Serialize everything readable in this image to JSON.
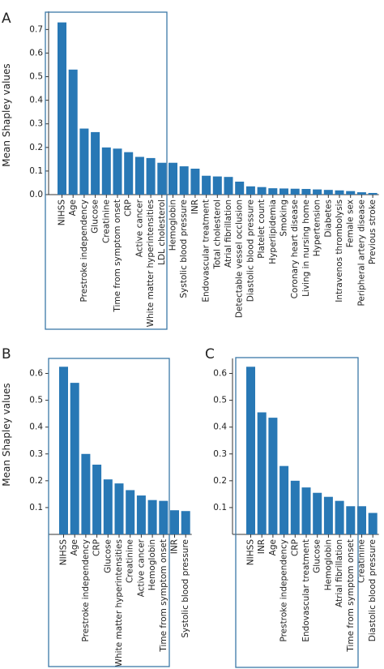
{
  "colors": {
    "bar": "#2878b5",
    "box": "#3b78a8",
    "axis": "#333333"
  },
  "chart_data": [
    {
      "panel": "A",
      "type": "bar",
      "ylabel": "Mean Shapley values",
      "ylim": [
        0,
        0.77
      ],
      "yticks": [
        "0.0",
        "0.1",
        "0.2",
        "0.3",
        "0.4",
        "0.5",
        "0.6",
        "0.7"
      ],
      "categories": [
        "NIHSS",
        "Age",
        "Prestroke independency",
        "Glucose",
        "Creatinine",
        "Time from symptom onset",
        "CRP",
        "Active cancer",
        "White matter hyperintensities",
        "LDL cholesterol",
        "Hemoglobin",
        "Systolic blood pressure",
        "INR",
        "Endovascular treatment",
        "Total cholesterol",
        "Atrial fibrillation",
        "Detectable vessel occlusion",
        "Diastolic blood pressure",
        "Platelet count",
        "Hyperlipidemia",
        "Smoking",
        "Coronary heart disease",
        "Living in nursing home",
        "Hypertension",
        "Diabetes",
        "Intravenos thrombolysis",
        "Female sex",
        "Peripheral artery disease",
        "Previous stroke"
      ],
      "values": [
        0.73,
        0.53,
        0.28,
        0.265,
        0.2,
        0.195,
        0.18,
        0.16,
        0.155,
        0.135,
        0.135,
        0.12,
        0.11,
        0.08,
        0.077,
        0.075,
        0.055,
        0.035,
        0.032,
        0.027,
        0.026,
        0.025,
        0.024,
        0.022,
        0.02,
        0.018,
        0.015,
        0.01,
        0.007
      ],
      "highlight_range": [
        0,
        9
      ]
    },
    {
      "panel": "B",
      "type": "bar",
      "ylabel": "Mean Shapley values",
      "ylim": [
        0,
        0.65
      ],
      "yticks": [
        "0.1",
        "0.2",
        "0.3",
        "0.4",
        "0.5",
        "0.6"
      ],
      "categories": [
        "NIHSS",
        "Age",
        "Prestroke independency",
        "CRP",
        "Glucose",
        "White matter hyperintensities",
        "Creatinine",
        "Active cancer",
        "Hemoglobin",
        "Time from symptom onset",
        "INR",
        "Systolic blood pressure"
      ],
      "values": [
        0.625,
        0.565,
        0.3,
        0.26,
        0.205,
        0.19,
        0.165,
        0.145,
        0.128,
        0.125,
        0.09,
        0.087
      ],
      "highlight_range": [
        0,
        9
      ]
    },
    {
      "panel": "C",
      "type": "bar",
      "ylabel": "",
      "ylim": [
        0,
        0.65
      ],
      "yticks": [
        "0.1",
        "0.2",
        "0.3",
        "0.4",
        "0.5",
        "0.6"
      ],
      "categories": [
        "NIHSS",
        "INR",
        "Age",
        "Prestroke independency",
        "CRP",
        "Endovascular treatment",
        "Glucose",
        "Hemoglobin",
        "Atrial fibrillation",
        "Time from symptom onset",
        "Creatinine",
        "Diastolic blood pressure"
      ],
      "values": [
        0.625,
        0.455,
        0.435,
        0.255,
        0.2,
        0.175,
        0.155,
        0.14,
        0.125,
        0.105,
        0.105,
        0.08
      ],
      "highlight_range": [
        0,
        9
      ]
    }
  ]
}
